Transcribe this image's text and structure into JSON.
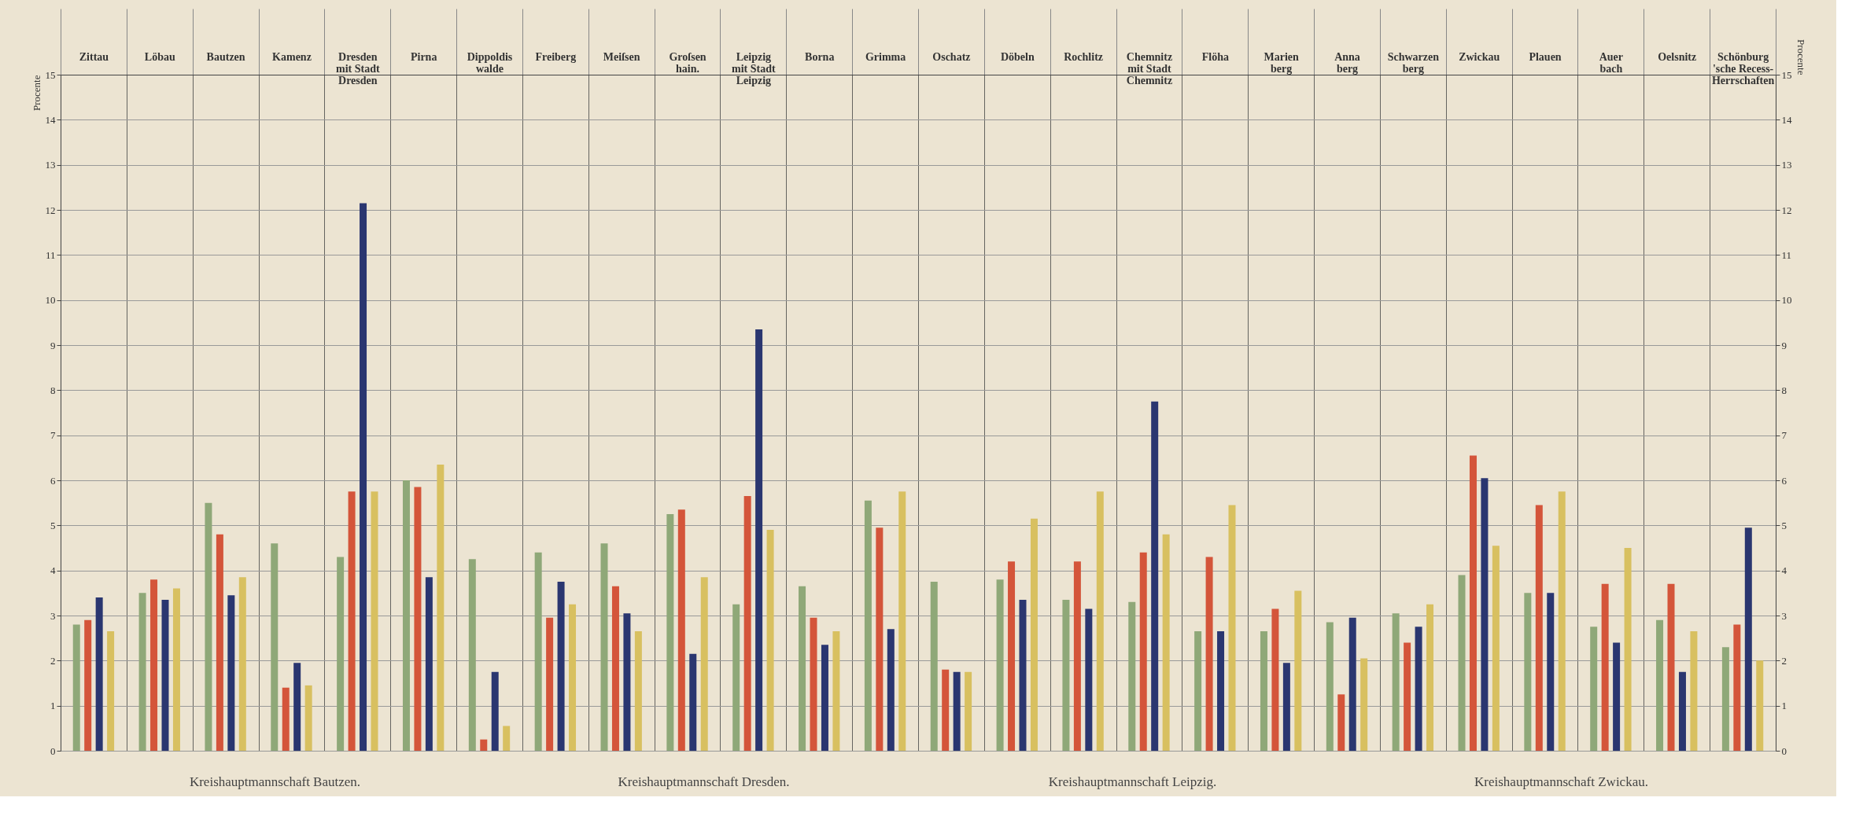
{
  "chart_data": {
    "type": "bar",
    "categories": [
      "Zittau",
      "Löbau",
      "Bautzen",
      "Kamenz",
      "Dresden\nmit Stadt\nDresden",
      "Pirna",
      "Dippoldis\nwalde",
      "Freiberg",
      "Meiſsen",
      "Groſsen\nhain.",
      "Leipzig\nmit Stadt\nLeipzig",
      "Borna",
      "Grimma",
      "Oschatz",
      "Döbeln",
      "Rochlitz",
      "Chemnitz\nmit Stadt\nChemnitz",
      "Flöha",
      "Marien\nberg",
      "Anna\nberg",
      "Schwarzen\nberg",
      "Zwickau",
      "Plauen",
      "Auer\nbach",
      "Oelsnitz",
      "Schönburg\n'sche Recess-\nHerrschaften"
    ],
    "series": [
      {
        "color": "#8fa878",
        "values": [
          2.8,
          3.5,
          5.5,
          4.6,
          4.3,
          6.0,
          4.25,
          4.4,
          4.6,
          5.25,
          3.25,
          3.65,
          5.55,
          3.75,
          3.8,
          3.35,
          3.3,
          2.65,
          2.65,
          2.85,
          3.05,
          3.9,
          3.5,
          2.75,
          2.9,
          2.3
        ]
      },
      {
        "color": "#d4553a",
        "values": [
          2.9,
          3.8,
          4.8,
          1.4,
          5.75,
          5.85,
          0.25,
          2.95,
          3.65,
          5.35,
          5.65,
          2.95,
          4.95,
          1.8,
          4.2,
          4.2,
          4.4,
          4.3,
          3.15,
          1.25,
          2.4,
          6.55,
          5.45,
          3.7,
          3.7,
          2.8
        ]
      },
      {
        "color": "#2a3670",
        "values": [
          3.4,
          3.35,
          3.45,
          1.95,
          12.15,
          3.85,
          1.75,
          3.75,
          3.05,
          2.15,
          9.35,
          2.35,
          2.7,
          1.75,
          3.35,
          3.15,
          7.75,
          2.65,
          1.95,
          2.95,
          2.75,
          6.05,
          3.5,
          2.4,
          1.75,
          4.95
        ]
      },
      {
        "color": "#d8c060",
        "values": [
          2.65,
          3.6,
          3.85,
          1.45,
          5.75,
          6.35,
          0.55,
          3.25,
          2.65,
          3.85,
          4.9,
          2.65,
          5.75,
          1.75,
          5.15,
          5.75,
          4.8,
          5.45,
          3.55,
          2.05,
          3.25,
          4.55,
          5.75,
          4.5,
          2.65,
          2.0
        ]
      }
    ],
    "ylabel": "Procente",
    "y2label": "Procente",
    "ylim": [
      0,
      15
    ],
    "yticks": [
      0,
      1,
      2,
      3,
      4,
      5,
      6,
      7,
      8,
      9,
      10,
      11,
      12,
      13,
      14,
      15
    ],
    "y2lim": [
      0,
      15
    ],
    "y2ticks": [
      0,
      1,
      2,
      3,
      4,
      5,
      6,
      7,
      8,
      9,
      10,
      11,
      12,
      13,
      14,
      15
    ],
    "grid": true,
    "legend": false,
    "annotations": [
      "Kreishauptmannschaft Bautzen.",
      "Kreishauptmannschaft Dresden.",
      "Kreishauptmannschaft Leipzig.",
      "Kreishauptmannschaft Zwickau."
    ]
  }
}
